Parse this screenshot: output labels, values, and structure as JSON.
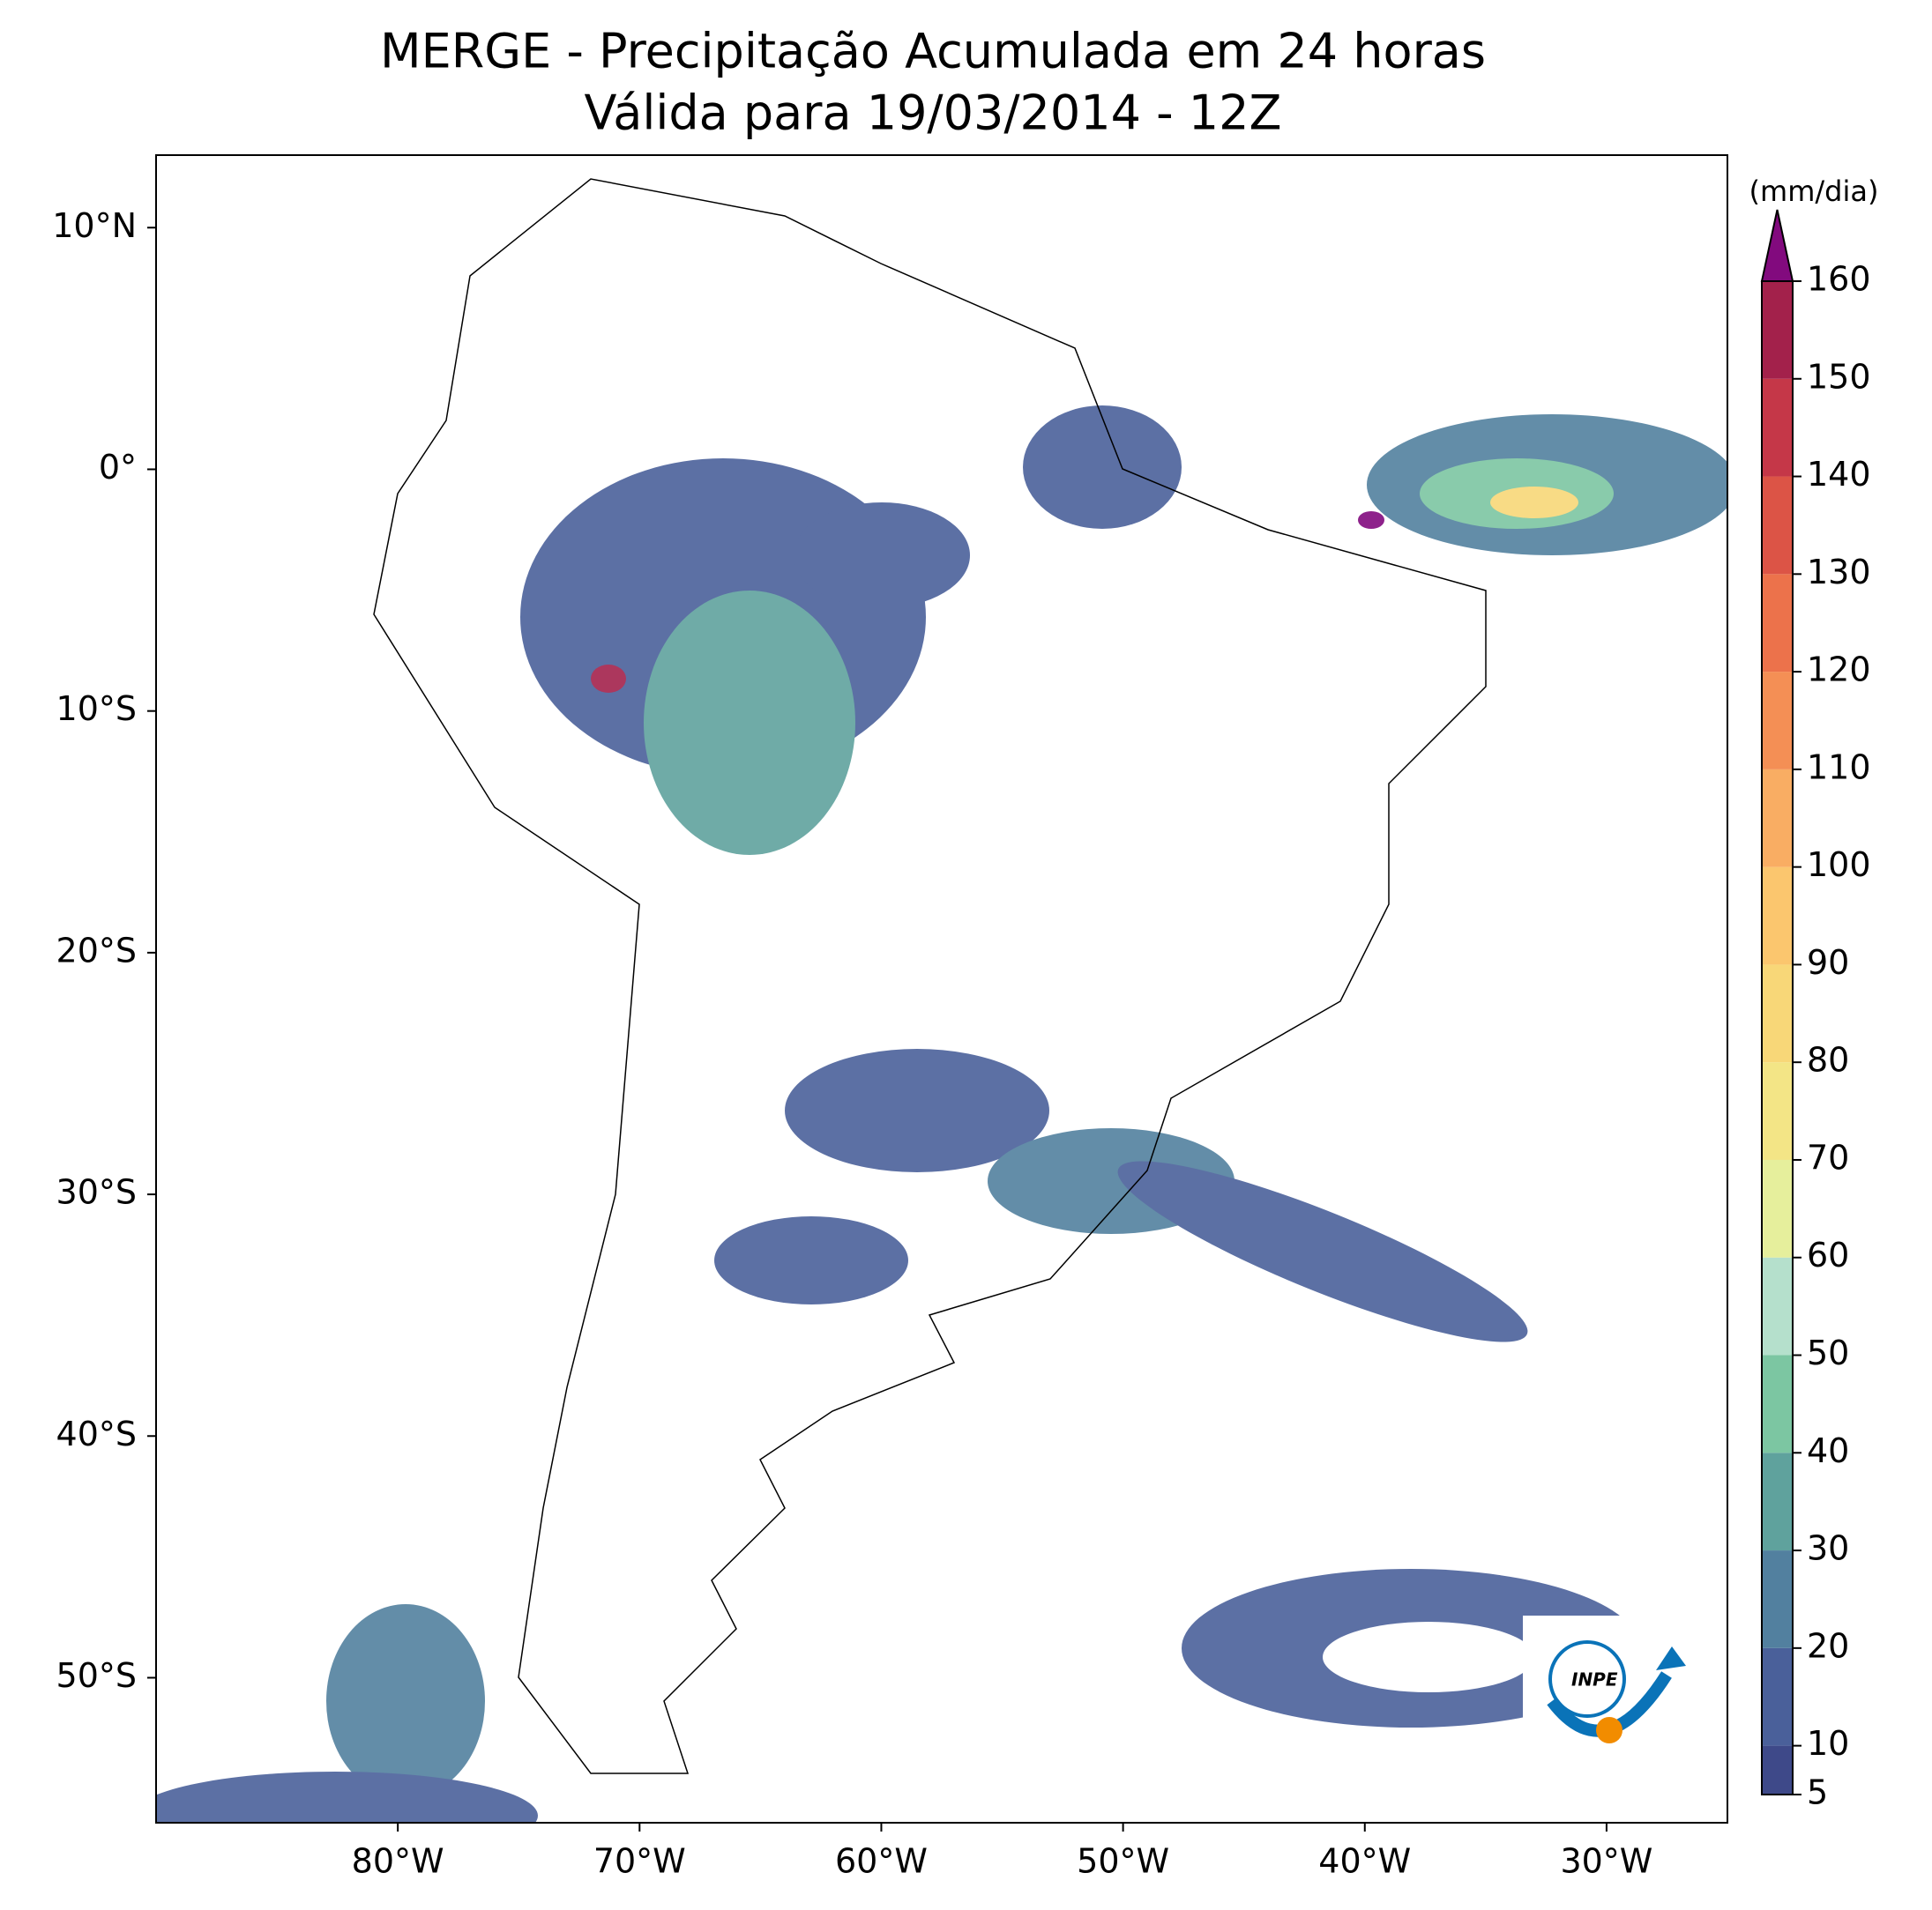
{
  "title": {
    "line1": "MERGE - Precipitação Acumulada em 24 horas",
    "line2": "Válida para 19/03/2014 - 12Z"
  },
  "map": {
    "xlim": [
      -90,
      -25
    ],
    "ylim": [
      -56,
      13
    ],
    "xticks": [
      {
        "value": -80,
        "label": "80°W"
      },
      {
        "value": -70,
        "label": "70°W"
      },
      {
        "value": -60,
        "label": "60°W"
      },
      {
        "value": -50,
        "label": "50°W"
      },
      {
        "value": -40,
        "label": "40°W"
      },
      {
        "value": -30,
        "label": "30°W"
      }
    ],
    "yticks": [
      {
        "value": 10,
        "label": "10°N"
      },
      {
        "value": 0,
        "label": "0°"
      },
      {
        "value": -10,
        "label": "10°S"
      },
      {
        "value": -20,
        "label": "20°S"
      },
      {
        "value": -30,
        "label": "30°S"
      },
      {
        "value": -40,
        "label": "40°S"
      },
      {
        "value": -50,
        "label": "50°S"
      }
    ]
  },
  "colorbar": {
    "unit": "(mm/dia)",
    "lim": [
      5,
      160
    ],
    "ticks": [
      5,
      10,
      20,
      30,
      40,
      50,
      60,
      70,
      80,
      90,
      100,
      110,
      120,
      130,
      140,
      150,
      160
    ],
    "colors": [
      "#3e4989",
      "#4a609a",
      "#52809f",
      "#5fa29d",
      "#7cc6a2",
      "#b5e0cc",
      "#e6ef9c",
      "#f3e586",
      "#f8d778",
      "#fbc66e",
      "#f9ad63",
      "#f48f55",
      "#ec724b",
      "#dc5446",
      "#c53748",
      "#a3214b"
    ],
    "extend_color": "#820a7e"
  },
  "logo": {
    "text": "INPE"
  }
}
